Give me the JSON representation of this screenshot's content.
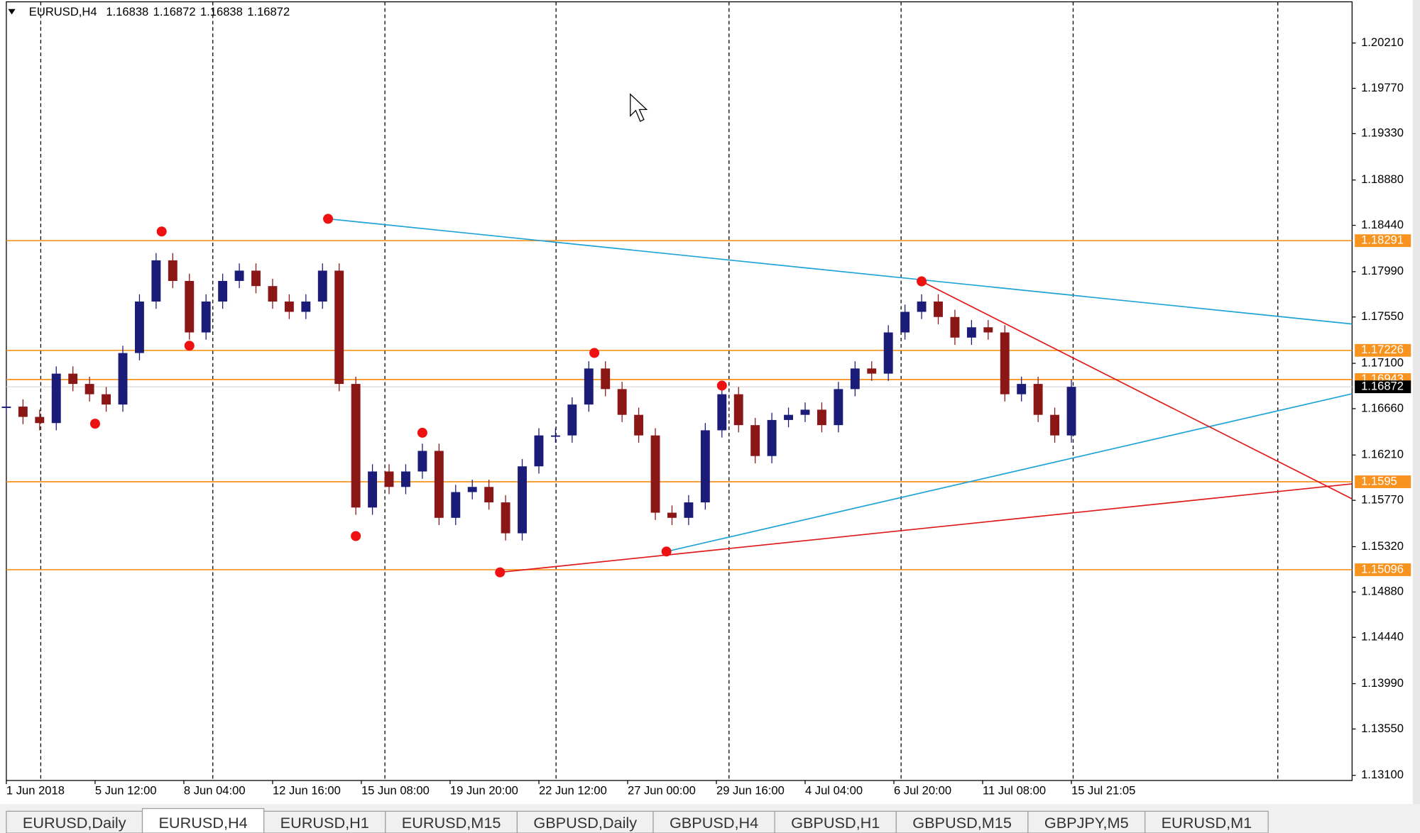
{
  "header": {
    "symbol": "EURUSD,H4",
    "quote": [
      1.16838,
      1.16872,
      1.16838,
      1.16872
    ]
  },
  "chart_data": {
    "type": "candlestick",
    "x": [
      0,
      3,
      6,
      9,
      12,
      15,
      18,
      21,
      24,
      27,
      30,
      33,
      36,
      39,
      42,
      45,
      48,
      51,
      54,
      57,
      60,
      63,
      66,
      69,
      72,
      75,
      78,
      81,
      84,
      87,
      90,
      93,
      96,
      99,
      102,
      105,
      108,
      111,
      114,
      117,
      120,
      123,
      126,
      129,
      132,
      135,
      138,
      141,
      144,
      147,
      150,
      153,
      156,
      159,
      162,
      165,
      168,
      171,
      174,
      177,
      180,
      183,
      186,
      189,
      192
    ],
    "close": [
      1.1668,
      1.1658,
      1.1652,
      1.17,
      1.169,
      1.168,
      1.167,
      1.172,
      1.177,
      1.181,
      1.179,
      1.174,
      1.177,
      1.179,
      1.18,
      1.1785,
      1.177,
      1.176,
      1.177,
      1.18,
      1.169,
      1.157,
      1.1605,
      1.159,
      1.1605,
      1.1625,
      1.156,
      1.1585,
      1.159,
      1.1575,
      1.1545,
      1.161,
      1.164,
      1.164,
      1.167,
      1.1705,
      1.1685,
      1.166,
      1.164,
      1.1565,
      1.156,
      1.1575,
      1.1645,
      1.168,
      1.165,
      1.162,
      1.1655,
      1.166,
      1.1665,
      1.165,
      1.1685,
      1.1705,
      1.17,
      1.174,
      1.176,
      1.177,
      1.1755,
      1.1735,
      1.1745,
      1.174,
      1.168,
      1.169,
      1.166,
      1.164,
      1.16872
    ],
    "up_color": "#1b1b78",
    "down_color": "#8a1616",
    "xlim": [
      0,
      242.6
    ],
    "ylim": [
      1.1305,
      1.2061
    ],
    "xticks": [
      {
        "value": 0,
        "label": "1 Jun 2018"
      },
      {
        "value": 16,
        "label": "5 Jun 12:00"
      },
      {
        "value": 32,
        "label": "8 Jun 04:00"
      },
      {
        "value": 48,
        "label": "12 Jun 16:00"
      },
      {
        "value": 64,
        "label": "15 Jun 08:00"
      },
      {
        "value": 80,
        "label": "19 Jun 20:00"
      },
      {
        "value": 96,
        "label": "22 Jun 12:00"
      },
      {
        "value": 112,
        "label": "27 Jun 00:00"
      },
      {
        "value": 128,
        "label": "29 Jun 16:00"
      },
      {
        "value": 144,
        "label": "4 Jul 04:00"
      },
      {
        "value": 160,
        "label": "6 Jul 20:00"
      },
      {
        "value": 176,
        "label": "11 Jul 08:00"
      },
      {
        "value": 192,
        "label": "15 Jul 21:05"
      }
    ],
    "yticks": [
      {
        "value": 1.2021,
        "label": "1.20210"
      },
      {
        "value": 1.1977,
        "label": "1.19770"
      },
      {
        "value": 1.1933,
        "label": "1.19330"
      },
      {
        "value": 1.1888,
        "label": "1.18880"
      },
      {
        "value": 1.1844,
        "label": "1.18440"
      },
      {
        "value": 1.1799,
        "label": "1.17990"
      },
      {
        "value": 1.1755,
        "label": "1.17550"
      },
      {
        "value": 1.171,
        "label": "1.17100"
      },
      {
        "value": 1.1666,
        "label": "1.16660"
      },
      {
        "value": 1.1621,
        "label": "1.16210"
      },
      {
        "value": 1.1577,
        "label": "1.15770"
      },
      {
        "value": 1.1532,
        "label": "1.15320"
      },
      {
        "value": 1.1488,
        "label": "1.14880"
      },
      {
        "value": 1.1444,
        "label": "1.14440"
      },
      {
        "value": 1.1399,
        "label": "1.13990"
      },
      {
        "value": 1.1355,
        "label": "1.13550"
      },
      {
        "value": 1.131,
        "label": "1.13100"
      }
    ],
    "levels": {
      "values": [
        1.18291,
        1.17226,
        1.16943,
        1.1595,
        1.15096
      ],
      "color": "#f7931e"
    },
    "current_price": 1.16872,
    "trendlines": [
      {
        "color": "#1fa3d6",
        "x": [
          58,
          242.6
        ],
        "values": [
          1.18503,
          1.17482
        ]
      },
      {
        "color": "#1fa3d6",
        "x": [
          119,
          242.6
        ],
        "values": [
          1.15273,
          1.16805
        ]
      },
      {
        "color": "#e01818",
        "x": [
          89,
          242.6
        ],
        "values": [
          1.15071,
          1.1593
        ]
      },
      {
        "color": "#e01818",
        "x": [
          165,
          242.6
        ],
        "values": [
          1.17896,
          1.15784
        ]
      }
    ],
    "fractals": {
      "color": "#ee1111",
      "x": [
        28,
        33,
        16,
        58,
        63,
        75,
        89,
        106,
        119,
        129,
        165
      ],
      "values": [
        1.1838,
        1.17271,
        1.16514,
        1.18503,
        1.15423,
        1.16426,
        1.15071,
        1.17201,
        1.15273,
        1.16884,
        1.17896
      ]
    },
    "grid": true
  },
  "tabs": [
    "EURUSD,Daily",
    "EURUSD,H4",
    "EURUSD,H1",
    "EURUSD,M15",
    "GBPUSD,Daily",
    "GBPUSD,H4",
    "GBPUSD,H1",
    "GBPUSD,M15",
    "GBPJPY,M5",
    "EURUSD,M1"
  ],
  "active_tab": 1
}
